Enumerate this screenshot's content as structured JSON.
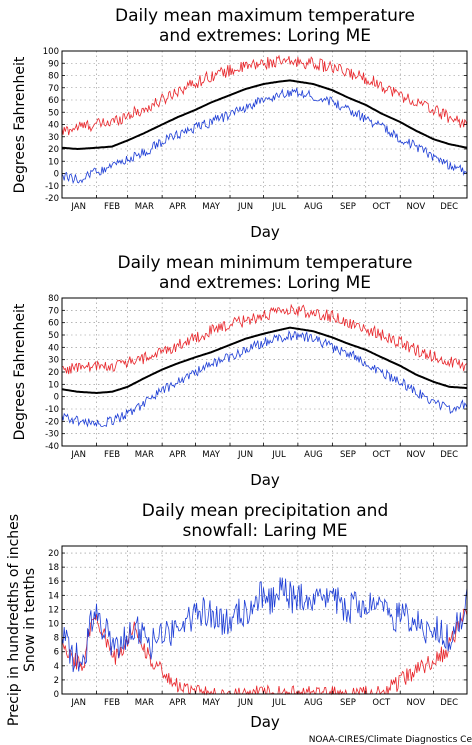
{
  "credit": "NOAA-CIRES/Climate Diagnostics Ce",
  "colors": {
    "record": "#e8262b",
    "mean": "#000000",
    "low": "#1f3fd6",
    "grid": "#8a8a8a"
  },
  "chart_data": [
    {
      "type": "line",
      "title_lines": [
        "Daily mean maximum temperature",
        "and extremes: Loring ME"
      ],
      "xlabel": "Day",
      "ylabel": "Degrees Fahrenheit",
      "ylim": [
        -20,
        100
      ],
      "yticks": [
        -20,
        -10,
        0,
        10,
        20,
        30,
        40,
        50,
        60,
        70,
        80,
        90,
        100
      ],
      "categories": [
        "JAN",
        "FEB",
        "MAR",
        "APR",
        "MAY",
        "JUN",
        "JUL",
        "AUG",
        "SEP",
        "OCT",
        "NOV",
        "DEC"
      ],
      "grid": true,
      "series": [
        {
          "role": "record",
          "color": "#e8262b",
          "noise": 5,
          "values": [
            [
              1,
              34
            ],
            [
              15,
              38
            ],
            [
              32,
              40
            ],
            [
              46,
              42
            ],
            [
              60,
              48
            ],
            [
              75,
              52
            ],
            [
              91,
              60
            ],
            [
              105,
              68
            ],
            [
              121,
              74
            ],
            [
              135,
              80
            ],
            [
              152,
              84
            ],
            [
              166,
              87
            ],
            [
              182,
              90
            ],
            [
              196,
              91
            ],
            [
              213,
              91
            ],
            [
              227,
              90
            ],
            [
              244,
              86
            ],
            [
              258,
              82
            ],
            [
              274,
              78
            ],
            [
              288,
              72
            ],
            [
              305,
              64
            ],
            [
              319,
              58
            ],
            [
              335,
              52
            ],
            [
              349,
              46
            ],
            [
              365,
              40
            ]
          ]
        },
        {
          "role": "mean",
          "color": "#000000",
          "noise": 0,
          "values": [
            [
              1,
              21
            ],
            [
              15,
              20
            ],
            [
              32,
              21
            ],
            [
              46,
              22
            ],
            [
              60,
              27
            ],
            [
              75,
              33
            ],
            [
              91,
              40
            ],
            [
              105,
              46
            ],
            [
              121,
              52
            ],
            [
              135,
              58
            ],
            [
              152,
              64
            ],
            [
              166,
              69
            ],
            [
              182,
              73
            ],
            [
              196,
              75
            ],
            [
              206,
              76
            ],
            [
              213,
              75
            ],
            [
              227,
              73
            ],
            [
              244,
              68
            ],
            [
              258,
              62
            ],
            [
              274,
              56
            ],
            [
              288,
              49
            ],
            [
              305,
              42
            ],
            [
              319,
              35
            ],
            [
              335,
              28
            ],
            [
              349,
              24
            ],
            [
              365,
              21
            ]
          ]
        },
        {
          "role": "low",
          "color": "#1f3fd6",
          "noise": 4,
          "values": [
            [
              1,
              -2
            ],
            [
              15,
              -5
            ],
            [
              32,
              2
            ],
            [
              46,
              5
            ],
            [
              60,
              12
            ],
            [
              75,
              17
            ],
            [
              91,
              26
            ],
            [
              105,
              32
            ],
            [
              121,
              37
            ],
            [
              135,
              42
            ],
            [
              152,
              48
            ],
            [
              166,
              54
            ],
            [
              182,
              60
            ],
            [
              196,
              64
            ],
            [
              213,
              67
            ],
            [
              227,
              63
            ],
            [
              244,
              58
            ],
            [
              258,
              52
            ],
            [
              274,
              45
            ],
            [
              288,
              38
            ],
            [
              305,
              29
            ],
            [
              319,
              22
            ],
            [
              335,
              14
            ],
            [
              349,
              7
            ],
            [
              365,
              2
            ]
          ]
        }
      ]
    },
    {
      "type": "line",
      "title_lines": [
        "Daily mean minimum temperature",
        "and extremes: Loring ME"
      ],
      "xlabel": "Day",
      "ylabel": "Degrees Fahrenheit",
      "ylim": [
        -40,
        80
      ],
      "yticks": [
        -40,
        -30,
        -20,
        -10,
        0,
        10,
        20,
        30,
        40,
        50,
        60,
        70,
        80
      ],
      "categories": [
        "JAN",
        "FEB",
        "MAR",
        "APR",
        "MAY",
        "JUN",
        "JUL",
        "AUG",
        "SEP",
        "OCT",
        "NOV",
        "DEC"
      ],
      "grid": true,
      "series": [
        {
          "role": "record",
          "color": "#e8262b",
          "noise": 5,
          "values": [
            [
              1,
              22
            ],
            [
              15,
              24
            ],
            [
              32,
              24
            ],
            [
              46,
              25
            ],
            [
              60,
              28
            ],
            [
              75,
              31
            ],
            [
              91,
              36
            ],
            [
              105,
              42
            ],
            [
              121,
              48
            ],
            [
              135,
              53
            ],
            [
              152,
              58
            ],
            [
              166,
              62
            ],
            [
              182,
              66
            ],
            [
              196,
              68
            ],
            [
              213,
              70
            ],
            [
              227,
              68
            ],
            [
              244,
              65
            ],
            [
              258,
              60
            ],
            [
              274,
              55
            ],
            [
              288,
              50
            ],
            [
              305,
              44
            ],
            [
              319,
              38
            ],
            [
              335,
              33
            ],
            [
              349,
              28
            ],
            [
              365,
              24
            ]
          ]
        },
        {
          "role": "mean",
          "color": "#000000",
          "noise": 0,
          "values": [
            [
              1,
              6
            ],
            [
              15,
              4
            ],
            [
              32,
              3
            ],
            [
              46,
              4
            ],
            [
              60,
              8
            ],
            [
              75,
              15
            ],
            [
              91,
              22
            ],
            [
              105,
              27
            ],
            [
              121,
              32
            ],
            [
              135,
              36
            ],
            [
              152,
              42
            ],
            [
              166,
              47
            ],
            [
              182,
              51
            ],
            [
              196,
              54
            ],
            [
              206,
              56
            ],
            [
              213,
              55
            ],
            [
              227,
              53
            ],
            [
              244,
              48
            ],
            [
              258,
              43
            ],
            [
              274,
              38
            ],
            [
              288,
              32
            ],
            [
              305,
              25
            ],
            [
              319,
              18
            ],
            [
              335,
              12
            ],
            [
              349,
              8
            ],
            [
              365,
              7
            ]
          ]
        },
        {
          "role": "low",
          "color": "#1f3fd6",
          "noise": 4,
          "values": [
            [
              1,
              -15
            ],
            [
              15,
              -20
            ],
            [
              32,
              -22
            ],
            [
              46,
              -20
            ],
            [
              60,
              -14
            ],
            [
              75,
              -5
            ],
            [
              91,
              5
            ],
            [
              105,
              12
            ],
            [
              121,
              20
            ],
            [
              135,
              26
            ],
            [
              152,
              32
            ],
            [
              166,
              38
            ],
            [
              182,
              44
            ],
            [
              196,
              48
            ],
            [
              213,
              50
            ],
            [
              227,
              47
            ],
            [
              244,
              40
            ],
            [
              258,
              35
            ],
            [
              274,
              28
            ],
            [
              288,
              20
            ],
            [
              305,
              12
            ],
            [
              319,
              4
            ],
            [
              335,
              -4
            ],
            [
              349,
              -10
            ],
            [
              365,
              -6
            ]
          ]
        }
      ]
    },
    {
      "type": "line",
      "title_lines": [
        "Daily mean precipitation and",
        "snowfall: Laring ME"
      ],
      "xlabel": "Day",
      "ylabel_lines": [
        "Precip in hundredths of inches",
        "Snow in tenths"
      ],
      "ylim": [
        0,
        21
      ],
      "yticks": [
        0,
        2,
        4,
        6,
        8,
        10,
        12,
        14,
        16,
        18,
        20
      ],
      "categories": [
        "JAN",
        "FEB",
        "MAR",
        "APR",
        "MAY",
        "JUN",
        "JUL",
        "AUG",
        "SEP",
        "OCT",
        "NOV",
        "DEC"
      ],
      "grid": true,
      "series": [
        {
          "role": "snow",
          "color": "#e8262b",
          "noise": 1.2,
          "values": [
            [
              1,
              8
            ],
            [
              10,
              5
            ],
            [
              20,
              4
            ],
            [
              28,
              11
            ],
            [
              38,
              9
            ],
            [
              48,
              5
            ],
            [
              58,
              7
            ],
            [
              66,
              10
            ],
            [
              76,
              6
            ],
            [
              86,
              4
            ],
            [
              96,
              2
            ],
            [
              106,
              1
            ],
            [
              116,
              0.5
            ],
            [
              124,
              0.3
            ],
            [
              130,
              0
            ],
            [
              276,
              0
            ],
            [
              290,
              0
            ],
            [
              298,
              1
            ],
            [
              306,
              2
            ],
            [
              316,
              3
            ],
            [
              326,
              4
            ],
            [
              336,
              5
            ],
            [
              346,
              6
            ],
            [
              356,
              9
            ],
            [
              365,
              12
            ]
          ]
        },
        {
          "role": "precip",
          "color": "#1f3fd6",
          "noise": 2.2,
          "values": [
            [
              1,
              8
            ],
            [
              12,
              5
            ],
            [
              22,
              6
            ],
            [
              30,
              12
            ],
            [
              40,
              9
            ],
            [
              50,
              6
            ],
            [
              60,
              8
            ],
            [
              70,
              9
            ],
            [
              80,
              7
            ],
            [
              90,
              8
            ],
            [
              100,
              9
            ],
            [
              110,
              10
            ],
            [
              120,
              11
            ],
            [
              130,
              12
            ],
            [
              140,
              11
            ],
            [
              150,
              10
            ],
            [
              160,
              12
            ],
            [
              170,
              11
            ],
            [
              180,
              14
            ],
            [
              190,
              13
            ],
            [
              200,
              15
            ],
            [
              210,
              13
            ],
            [
              220,
              14
            ],
            [
              230,
              13
            ],
            [
              240,
              14
            ],
            [
              250,
              13
            ],
            [
              260,
              12
            ],
            [
              270,
              13
            ],
            [
              280,
              12
            ],
            [
              290,
              12
            ],
            [
              300,
              11
            ],
            [
              310,
              11
            ],
            [
              320,
              10
            ],
            [
              330,
              9
            ],
            [
              340,
              9
            ],
            [
              350,
              8
            ],
            [
              360,
              11
            ],
            [
              365,
              14
            ]
          ]
        }
      ]
    }
  ]
}
